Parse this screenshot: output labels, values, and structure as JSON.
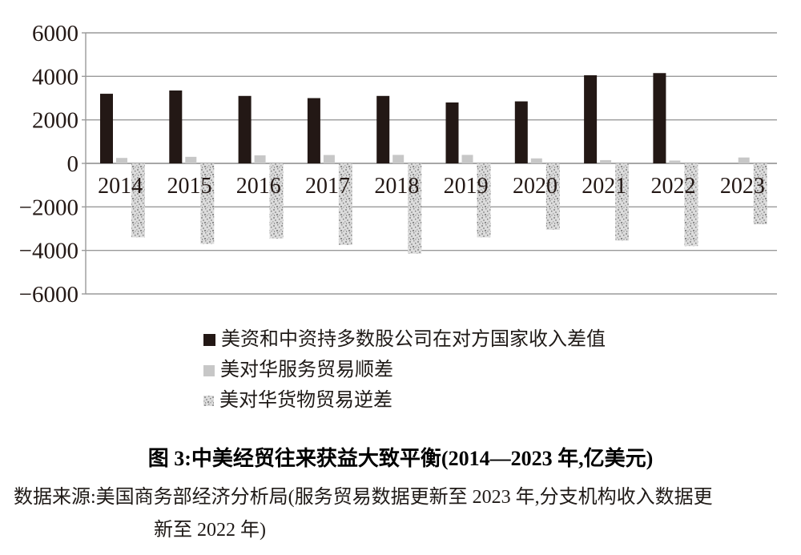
{
  "figure": {
    "title": "图 3:中美经贸往来获益大致平衡(2014—2023 年,亿美元)",
    "source_line1": "数据来源:美国商务部经济分析局(服务贸易数据更新至 2023 年,分支机构收入数据更",
    "source_line2": "新至 2022 年)"
  },
  "colors": {
    "bar_black": "#231815",
    "bar_gray": "#c7c7c7",
    "bar_texture_base": "#dcdcdc",
    "gridline": "#9a9a9a",
    "zero_line": "#8a8a8a",
    "text": "#1f1a17"
  },
  "chart_data": {
    "type": "bar",
    "title": "图 3:中美经贸往来获益大致平衡(2014—2023 年,亿美元)",
    "unit": "亿美元",
    "categories": [
      "2014",
      "2015",
      "2016",
      "2017",
      "2018",
      "2019",
      "2020",
      "2021",
      "2022",
      "2023"
    ],
    "series": [
      {
        "name": "美资和中资持多数股公司在对方国家收入差值",
        "key": "income-gap",
        "style": "solid-black",
        "color": "#231815",
        "values": [
          3200,
          3350,
          3100,
          3000,
          3100,
          2800,
          2850,
          4050,
          4150,
          null
        ]
      },
      {
        "name": "美对华服务贸易顺差",
        "key": "services-surplus",
        "style": "solid-gray",
        "color": "#c7c7c7",
        "values": [
          250,
          300,
          370,
          385,
          390,
          390,
          230,
          150,
          130,
          270
        ]
      },
      {
        "name": "美对华货物贸易逆差",
        "key": "goods-deficit",
        "style": "speckled",
        "color": "#dcdcdc",
        "values": [
          -3400,
          -3700,
          -3450,
          -3750,
          -4150,
          -3400,
          -3050,
          -3550,
          -3800,
          -2800
        ]
      }
    ],
    "ylim": [
      -6000,
      6000
    ],
    "ytick_step": 2000,
    "yticks": [
      {
        "value": 6000,
        "label": "6000"
      },
      {
        "value": 4000,
        "label": "4000"
      },
      {
        "value": 2000,
        "label": "2000"
      },
      {
        "value": 0,
        "label": "0"
      },
      {
        "value": -2000,
        "label": "−2000"
      },
      {
        "value": -4000,
        "label": "−4000"
      },
      {
        "value": -6000,
        "label": "−6000"
      }
    ],
    "grid": true,
    "legend_position": "below"
  }
}
